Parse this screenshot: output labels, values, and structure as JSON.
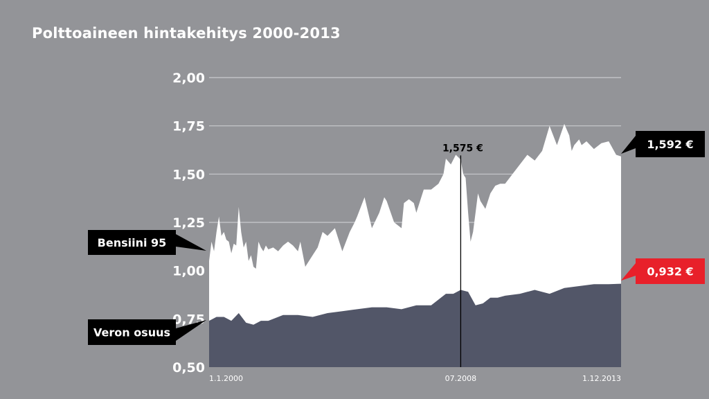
{
  "chart_data": {
    "type": "area",
    "title": "Polttoaineen hintakehitys 2000-2013",
    "xlabel": "",
    "ylabel": "",
    "ylim": [
      0.5,
      2.0
    ],
    "yticks": [
      "0,50",
      "0,75",
      "1,00",
      "1,25",
      "1,50",
      "1,75",
      "2,00"
    ],
    "ytick_values": [
      0.5,
      0.75,
      1.0,
      1.25,
      1.5,
      1.75,
      2.0
    ],
    "xtick_labels": [
      "1.1.2000",
      "07.2008",
      "1.12.2013"
    ],
    "xtick_values": [
      2000.0,
      2008.5,
      2013.917
    ],
    "grid": true,
    "series": [
      {
        "name": "Bensiini 95",
        "color": "#ffffff",
        "x": [
          2000.0,
          2000.083,
          2000.167,
          2000.25,
          2000.333,
          2000.417,
          2000.5,
          2000.583,
          2000.667,
          2000.75,
          2000.833,
          2000.917,
          2001.0,
          2001.083,
          2001.167,
          2001.25,
          2001.333,
          2001.417,
          2001.5,
          2001.583,
          2001.667,
          2001.75,
          2001.833,
          2001.917,
          2002.0,
          2002.167,
          2002.333,
          2002.5,
          2002.667,
          2002.833,
          2003.0,
          2003.083,
          2003.25,
          2003.5,
          2003.667,
          2003.833,
          2004.0,
          2004.25,
          2004.5,
          2004.75,
          2004.917,
          2005.0,
          2005.25,
          2005.5,
          2005.75,
          2005.917,
          2006.0,
          2006.25,
          2006.5,
          2006.583,
          2006.75,
          2006.917,
          2007.0,
          2007.25,
          2007.5,
          2007.75,
          2007.917,
          2008.0,
          2008.167,
          2008.333,
          2008.5,
          2008.583,
          2008.667,
          2008.75,
          2008.833,
          2008.917,
          2009.0,
          2009.083,
          2009.167,
          2009.333,
          2009.5,
          2009.667,
          2009.833,
          2010.0,
          2010.25,
          2010.5,
          2010.75,
          2011.0,
          2011.25,
          2011.5,
          2011.75,
          2012.0,
          2012.167,
          2012.25,
          2012.333,
          2012.5,
          2012.583,
          2012.75,
          2013.0,
          2013.25,
          2013.5,
          2013.75,
          2013.917
        ],
        "values": [
          1.05,
          1.15,
          1.1,
          1.2,
          1.28,
          1.18,
          1.2,
          1.16,
          1.15,
          1.09,
          1.14,
          1.13,
          1.33,
          1.2,
          1.12,
          1.15,
          1.05,
          1.08,
          1.02,
          1.01,
          1.15,
          1.12,
          1.1,
          1.13,
          1.11,
          1.12,
          1.1,
          1.13,
          1.15,
          1.13,
          1.1,
          1.15,
          1.02,
          1.08,
          1.12,
          1.2,
          1.18,
          1.22,
          1.1,
          1.2,
          1.25,
          1.28,
          1.38,
          1.22,
          1.3,
          1.38,
          1.36,
          1.25,
          1.22,
          1.35,
          1.37,
          1.35,
          1.3,
          1.42,
          1.42,
          1.45,
          1.5,
          1.58,
          1.55,
          1.6,
          1.575,
          1.5,
          1.48,
          1.3,
          1.15,
          1.2,
          1.3,
          1.4,
          1.36,
          1.32,
          1.4,
          1.44,
          1.45,
          1.45,
          1.5,
          1.55,
          1.6,
          1.57,
          1.62,
          1.75,
          1.65,
          1.76,
          1.7,
          1.62,
          1.65,
          1.68,
          1.65,
          1.67,
          1.63,
          1.66,
          1.67,
          1.6,
          1.592
        ]
      },
      {
        "name": "Veron osuus",
        "color": "#525668",
        "x": [
          2000.0,
          2000.25,
          2000.5,
          2000.75,
          2001.0,
          2001.25,
          2001.5,
          2001.75,
          2002.0,
          2002.5,
          2003.0,
          2003.5,
          2004.0,
          2004.5,
          2005.0,
          2005.5,
          2006.0,
          2006.5,
          2007.0,
          2007.5,
          2007.75,
          2008.0,
          2008.25,
          2008.5,
          2008.75,
          2009.0,
          2009.25,
          2009.5,
          2009.75,
          2010.0,
          2010.5,
          2011.0,
          2011.5,
          2012.0,
          2012.5,
          2013.0,
          2013.5,
          2013.917
        ],
        "values": [
          0.74,
          0.76,
          0.76,
          0.74,
          0.78,
          0.73,
          0.72,
          0.74,
          0.74,
          0.77,
          0.77,
          0.76,
          0.78,
          0.79,
          0.8,
          0.81,
          0.81,
          0.8,
          0.82,
          0.82,
          0.85,
          0.88,
          0.88,
          0.9,
          0.89,
          0.82,
          0.83,
          0.86,
          0.86,
          0.87,
          0.88,
          0.9,
          0.88,
          0.91,
          0.92,
          0.93,
          0.93,
          0.932
        ]
      }
    ],
    "markers": [
      {
        "x": 2008.5,
        "label": "1,575 €",
        "value": 1.575
      }
    ],
    "callouts": {
      "bensiini": "Bensiini 95",
      "vero": "Veron osuus",
      "end_price": "1,592 €",
      "end_tax": "0,932 €"
    },
    "colors": {
      "background": "#939498",
      "price_area": "#ffffff",
      "tax_area": "#525668",
      "grid": "#c9cacd",
      "callout_dark": "#000000",
      "callout_red": "#e8202a"
    }
  }
}
